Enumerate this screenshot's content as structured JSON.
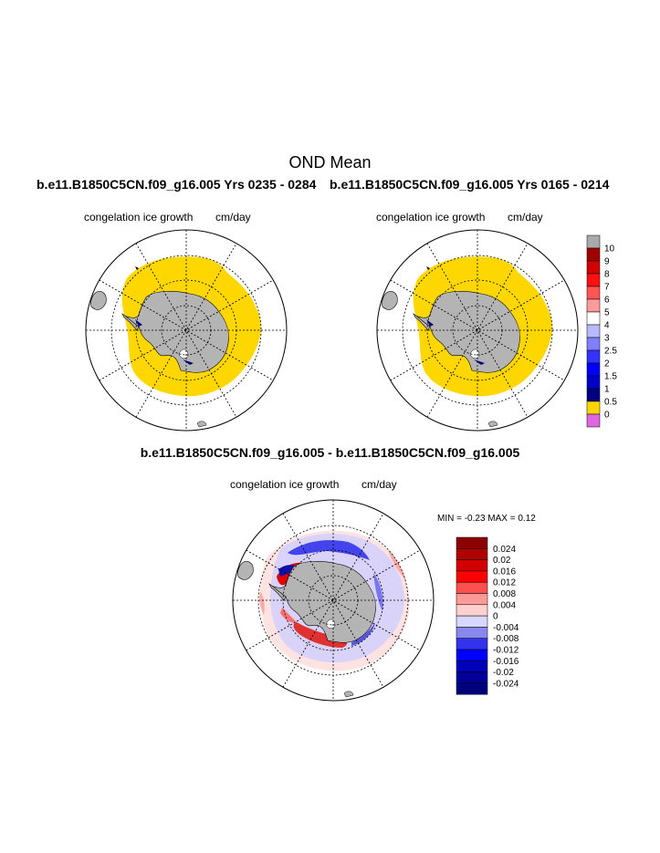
{
  "figure": {
    "title": "OND Mean"
  },
  "panels": [
    {
      "id": "top-left",
      "run_title": "b.e11.B1850C5CN.f09_g16.005  Yrs 0235 - 0284",
      "variable": "congelation ice growth",
      "units": "cm/day"
    },
    {
      "id": "top-right",
      "run_title": "b.e11.B1850C5CN.f09_g16.005  Yrs 0165 - 0214",
      "variable": "congelation ice growth",
      "units": "cm/day"
    },
    {
      "id": "difference",
      "run_title": "b.e11.B1850C5CN.f09_g16.005 - b.e11.B1850C5CN.f09_g16.005",
      "variable": "congelation ice growth",
      "units": "cm/day",
      "min_max": "MIN =  -0.23 MAX =   0.12"
    }
  ],
  "colorbar_top": {
    "labels": [
      "10",
      "9",
      "8",
      "7",
      "6",
      "5",
      "4",
      "3",
      "2.5",
      "2",
      "1.5",
      "1",
      "0.5",
      "0"
    ],
    "colors": [
      "#aaaaaa",
      "#a00000",
      "#d40000",
      "#ff1010",
      "#ff5555",
      "#ff9a9a",
      "#ffffff",
      "#b9b9ff",
      "#7f7fff",
      "#3333ff",
      "#0000ff",
      "#0000c8",
      "#000080",
      "#ffd700",
      "#e066e0"
    ]
  },
  "colorbar_diff": {
    "labels": [
      "0.024",
      "0.02",
      "0.016",
      "0.012",
      "0.008",
      "0.004",
      "0",
      "-0.004",
      "-0.008",
      "-0.012",
      "-0.016",
      "-0.02",
      "-0.024"
    ],
    "colors": [
      "#8b0000",
      "#b00000",
      "#d20000",
      "#ff0000",
      "#ff5050",
      "#ff9a9a",
      "#ffd0d0",
      "#d8d8ff",
      "#8888ee",
      "#3333ee",
      "#0000ff",
      "#0000bb",
      "#000099",
      "#00007a"
    ]
  },
  "map_colors": {
    "ice": "#ffd700",
    "land": "#b4b4b4",
    "ocean": "#ffffff"
  }
}
